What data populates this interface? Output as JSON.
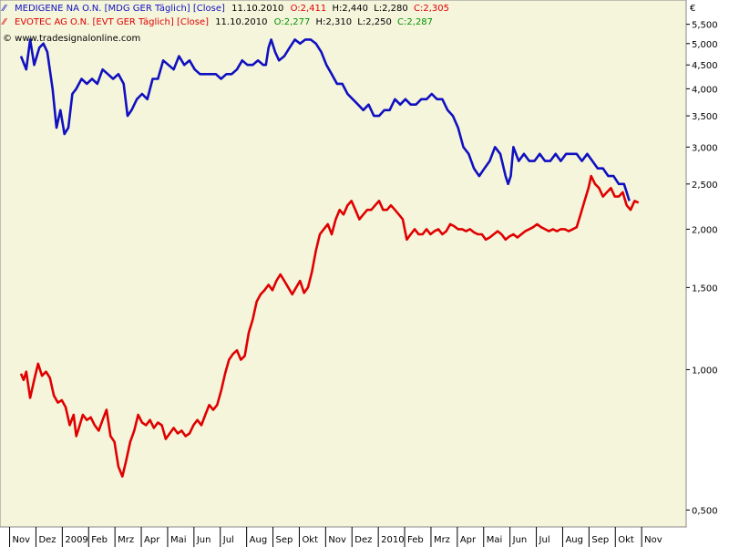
{
  "currency_symbol": "€",
  "copyright": "© www.tradesignalonline.com",
  "legend": [
    {
      "icon": "line-chart-icon",
      "name": "MEDIGENE NA O.N. [MDG GER  Täglich] [Close]",
      "date": "11.10.2010",
      "o_label": "O:",
      "o_value": "2,411",
      "h_label": "H:",
      "h_value": "2,440",
      "l_label": "L:",
      "l_value": "2,280",
      "c_label": "C:",
      "c_value": "2,305",
      "name_color": "#1010c0",
      "o_color": "#e00000",
      "h_color": "#000000",
      "l_color": "#000000",
      "c_color": "#e00000"
    },
    {
      "icon": "line-chart-icon",
      "name": "EVOTEC AG O.N. [EVT GER  Täglich] [Close]",
      "date": "11.10.2010",
      "o_label": "O:",
      "o_value": "2,277",
      "h_label": "H:",
      "h_value": "2,310",
      "l_label": "L:",
      "l_value": "2,250",
      "c_label": "C:",
      "c_value": "2,287",
      "name_color": "#e00000",
      "o_color": "#009000",
      "h_color": "#000000",
      "l_color": "#000000",
      "c_color": "#009000"
    }
  ],
  "chart_data": {
    "type": "line",
    "scale": "log",
    "ylim": [
      0.46,
      6.2
    ],
    "y_ticks": [
      {
        "value": 5.5,
        "label": "5,500"
      },
      {
        "value": 5.0,
        "label": "5,000"
      },
      {
        "value": 4.5,
        "label": "4,500"
      },
      {
        "value": 4.0,
        "label": "4,000"
      },
      {
        "value": 3.5,
        "label": "3,500"
      },
      {
        "value": 3.0,
        "label": "3,000"
      },
      {
        "value": 2.5,
        "label": "2,500"
      },
      {
        "value": 2.0,
        "label": "2,000"
      },
      {
        "value": 1.5,
        "label": "1,500"
      },
      {
        "value": 1.0,
        "label": "1,000"
      },
      {
        "value": 0.5,
        "label": "0,500"
      }
    ],
    "x_ticks": [
      "Nov",
      "Dez",
      "2009",
      "Feb",
      "Mrz",
      "Apr",
      "Mai",
      "Jun",
      "Jul",
      "Aug",
      "Sep",
      "Okt",
      "Nov",
      "Dez",
      "2010",
      "Feb",
      "Mrz",
      "Apr",
      "Mai",
      "Jun",
      "Jul",
      "Aug",
      "Sep",
      "Okt",
      "Nov"
    ],
    "x_domain_months": [
      0,
      25
    ],
    "grid": false,
    "background": "#f5f5dc",
    "series": [
      {
        "name": "MEDIGENE NA O.N.",
        "color": "#1010c0",
        "points": [
          [
            0.0,
            4.7
          ],
          [
            0.2,
            4.4
          ],
          [
            0.35,
            5.1
          ],
          [
            0.5,
            4.5
          ],
          [
            0.7,
            4.9
          ],
          [
            0.85,
            5.0
          ],
          [
            1.0,
            4.8
          ],
          [
            1.2,
            4.0
          ],
          [
            1.35,
            3.3
          ],
          [
            1.5,
            3.6
          ],
          [
            1.65,
            3.2
          ],
          [
            1.8,
            3.3
          ],
          [
            1.95,
            3.9
          ],
          [
            2.1,
            4.0
          ],
          [
            2.3,
            4.2
          ],
          [
            2.5,
            4.1
          ],
          [
            2.7,
            4.2
          ],
          [
            2.9,
            4.1
          ],
          [
            3.1,
            4.4
          ],
          [
            3.3,
            4.3
          ],
          [
            3.5,
            4.2
          ],
          [
            3.7,
            4.3
          ],
          [
            3.9,
            4.1
          ],
          [
            4.05,
            3.5
          ],
          [
            4.2,
            3.6
          ],
          [
            4.4,
            3.8
          ],
          [
            4.6,
            3.9
          ],
          [
            4.8,
            3.8
          ],
          [
            5.0,
            4.2
          ],
          [
            5.2,
            4.2
          ],
          [
            5.4,
            4.6
          ],
          [
            5.6,
            4.5
          ],
          [
            5.8,
            4.4
          ],
          [
            6.0,
            4.7
          ],
          [
            6.2,
            4.5
          ],
          [
            6.4,
            4.6
          ],
          [
            6.6,
            4.4
          ],
          [
            6.8,
            4.3
          ],
          [
            7.0,
            4.3
          ],
          [
            7.2,
            4.3
          ],
          [
            7.4,
            4.3
          ],
          [
            7.6,
            4.2
          ],
          [
            7.8,
            4.3
          ],
          [
            8.0,
            4.3
          ],
          [
            8.2,
            4.4
          ],
          [
            8.4,
            4.6
          ],
          [
            8.6,
            4.5
          ],
          [
            8.8,
            4.5
          ],
          [
            9.0,
            4.6
          ],
          [
            9.2,
            4.5
          ],
          [
            9.3,
            4.5
          ],
          [
            9.4,
            4.9
          ],
          [
            9.5,
            5.1
          ],
          [
            9.65,
            4.8
          ],
          [
            9.8,
            4.6
          ],
          [
            10.0,
            4.7
          ],
          [
            10.2,
            4.9
          ],
          [
            10.4,
            5.1
          ],
          [
            10.6,
            5.0
          ],
          [
            10.8,
            5.1
          ],
          [
            11.0,
            5.1
          ],
          [
            11.2,
            5.0
          ],
          [
            11.4,
            4.8
          ],
          [
            11.6,
            4.5
          ],
          [
            11.8,
            4.3
          ],
          [
            12.0,
            4.1
          ],
          [
            12.2,
            4.1
          ],
          [
            12.4,
            3.9
          ],
          [
            12.6,
            3.8
          ],
          [
            12.8,
            3.7
          ],
          [
            13.0,
            3.6
          ],
          [
            13.2,
            3.7
          ],
          [
            13.4,
            3.5
          ],
          [
            13.6,
            3.5
          ],
          [
            13.8,
            3.6
          ],
          [
            14.0,
            3.6
          ],
          [
            14.2,
            3.8
          ],
          [
            14.4,
            3.7
          ],
          [
            14.6,
            3.8
          ],
          [
            14.8,
            3.7
          ],
          [
            15.0,
            3.7
          ],
          [
            15.2,
            3.8
          ],
          [
            15.4,
            3.8
          ],
          [
            15.6,
            3.9
          ],
          [
            15.8,
            3.8
          ],
          [
            16.0,
            3.8
          ],
          [
            16.2,
            3.6
          ],
          [
            16.4,
            3.5
          ],
          [
            16.6,
            3.3
          ],
          [
            16.8,
            3.0
          ],
          [
            17.0,
            2.9
          ],
          [
            17.2,
            2.7
          ],
          [
            17.4,
            2.6
          ],
          [
            17.6,
            2.7
          ],
          [
            17.8,
            2.8
          ],
          [
            18.0,
            3.0
          ],
          [
            18.2,
            2.9
          ],
          [
            18.4,
            2.6
          ],
          [
            18.5,
            2.5
          ],
          [
            18.6,
            2.6
          ],
          [
            18.7,
            3.0
          ],
          [
            18.9,
            2.8
          ],
          [
            19.1,
            2.9
          ],
          [
            19.3,
            2.8
          ],
          [
            19.5,
            2.8
          ],
          [
            19.7,
            2.9
          ],
          [
            19.9,
            2.8
          ],
          [
            20.1,
            2.8
          ],
          [
            20.3,
            2.9
          ],
          [
            20.5,
            2.8
          ],
          [
            20.7,
            2.9
          ],
          [
            20.9,
            2.9
          ],
          [
            21.1,
            2.9
          ],
          [
            21.3,
            2.8
          ],
          [
            21.5,
            2.9
          ],
          [
            21.7,
            2.8
          ],
          [
            21.9,
            2.7
          ],
          [
            22.1,
            2.7
          ],
          [
            22.3,
            2.6
          ],
          [
            22.5,
            2.6
          ],
          [
            22.7,
            2.5
          ],
          [
            22.9,
            2.5
          ],
          [
            23.0,
            2.4
          ],
          [
            23.1,
            2.3
          ]
        ]
      },
      {
        "name": "EVOTEC AG O.N.",
        "color": "#e00000",
        "points": [
          [
            0.0,
            0.98
          ],
          [
            0.1,
            0.95
          ],
          [
            0.2,
            0.99
          ],
          [
            0.35,
            0.87
          ],
          [
            0.5,
            0.95
          ],
          [
            0.65,
            1.03
          ],
          [
            0.8,
            0.97
          ],
          [
            0.95,
            0.99
          ],
          [
            1.1,
            0.96
          ],
          [
            1.25,
            0.88
          ],
          [
            1.4,
            0.85
          ],
          [
            1.55,
            0.86
          ],
          [
            1.7,
            0.83
          ],
          [
            1.85,
            0.76
          ],
          [
            2.0,
            0.8
          ],
          [
            2.1,
            0.72
          ],
          [
            2.2,
            0.75
          ],
          [
            2.35,
            0.8
          ],
          [
            2.5,
            0.78
          ],
          [
            2.65,
            0.79
          ],
          [
            2.8,
            0.76
          ],
          [
            2.95,
            0.74
          ],
          [
            3.1,
            0.78
          ],
          [
            3.25,
            0.82
          ],
          [
            3.4,
            0.72
          ],
          [
            3.55,
            0.7
          ],
          [
            3.7,
            0.62
          ],
          [
            3.85,
            0.59
          ],
          [
            4.0,
            0.64
          ],
          [
            4.15,
            0.7
          ],
          [
            4.3,
            0.74
          ],
          [
            4.45,
            0.8
          ],
          [
            4.6,
            0.77
          ],
          [
            4.75,
            0.76
          ],
          [
            4.9,
            0.78
          ],
          [
            5.05,
            0.75
          ],
          [
            5.2,
            0.77
          ],
          [
            5.35,
            0.76
          ],
          [
            5.5,
            0.71
          ],
          [
            5.65,
            0.73
          ],
          [
            5.8,
            0.75
          ],
          [
            5.95,
            0.73
          ],
          [
            6.1,
            0.74
          ],
          [
            6.25,
            0.72
          ],
          [
            6.4,
            0.73
          ],
          [
            6.55,
            0.76
          ],
          [
            6.7,
            0.78
          ],
          [
            6.85,
            0.76
          ],
          [
            7.0,
            0.8
          ],
          [
            7.15,
            0.84
          ],
          [
            7.3,
            0.82
          ],
          [
            7.45,
            0.84
          ],
          [
            7.6,
            0.9
          ],
          [
            7.75,
            0.98
          ],
          [
            7.9,
            1.05
          ],
          [
            8.05,
            1.08
          ],
          [
            8.2,
            1.1
          ],
          [
            8.35,
            1.05
          ],
          [
            8.5,
            1.07
          ],
          [
            8.65,
            1.2
          ],
          [
            8.8,
            1.28
          ],
          [
            8.95,
            1.4
          ],
          [
            9.1,
            1.45
          ],
          [
            9.25,
            1.48
          ],
          [
            9.4,
            1.52
          ],
          [
            9.55,
            1.48
          ],
          [
            9.7,
            1.55
          ],
          [
            9.85,
            1.6
          ],
          [
            10.0,
            1.55
          ],
          [
            10.15,
            1.5
          ],
          [
            10.3,
            1.45
          ],
          [
            10.45,
            1.5
          ],
          [
            10.6,
            1.55
          ],
          [
            10.75,
            1.46
          ],
          [
            10.9,
            1.5
          ],
          [
            11.05,
            1.62
          ],
          [
            11.2,
            1.8
          ],
          [
            11.35,
            1.95
          ],
          [
            11.5,
            2.0
          ],
          [
            11.65,
            2.05
          ],
          [
            11.8,
            1.95
          ],
          [
            11.95,
            2.1
          ],
          [
            12.1,
            2.2
          ],
          [
            12.25,
            2.15
          ],
          [
            12.4,
            2.25
          ],
          [
            12.55,
            2.3
          ],
          [
            12.7,
            2.2
          ],
          [
            12.85,
            2.1
          ],
          [
            13.0,
            2.15
          ],
          [
            13.15,
            2.2
          ],
          [
            13.3,
            2.2
          ],
          [
            13.45,
            2.25
          ],
          [
            13.6,
            2.3
          ],
          [
            13.75,
            2.2
          ],
          [
            13.9,
            2.2
          ],
          [
            14.05,
            2.25
          ],
          [
            14.2,
            2.2
          ],
          [
            14.35,
            2.15
          ],
          [
            14.5,
            2.1
          ],
          [
            14.65,
            1.9
          ],
          [
            14.8,
            1.95
          ],
          [
            14.95,
            2.0
          ],
          [
            15.1,
            1.95
          ],
          [
            15.25,
            1.95
          ],
          [
            15.4,
            2.0
          ],
          [
            15.55,
            1.95
          ],
          [
            15.7,
            1.98
          ],
          [
            15.85,
            2.0
          ],
          [
            16.0,
            1.95
          ],
          [
            16.15,
            1.98
          ],
          [
            16.3,
            2.05
          ],
          [
            16.45,
            2.03
          ],
          [
            16.6,
            2.0
          ],
          [
            16.75,
            2.0
          ],
          [
            16.9,
            1.98
          ],
          [
            17.05,
            2.0
          ],
          [
            17.2,
            1.97
          ],
          [
            17.35,
            1.95
          ],
          [
            17.5,
            1.95
          ],
          [
            17.65,
            1.9
          ],
          [
            17.8,
            1.92
          ],
          [
            17.95,
            1.95
          ],
          [
            18.1,
            1.98
          ],
          [
            18.25,
            1.95
          ],
          [
            18.4,
            1.9
          ],
          [
            18.55,
            1.93
          ],
          [
            18.7,
            1.95
          ],
          [
            18.85,
            1.92
          ],
          [
            19.0,
            1.95
          ],
          [
            19.15,
            1.98
          ],
          [
            19.3,
            2.0
          ],
          [
            19.45,
            2.02
          ],
          [
            19.6,
            2.05
          ],
          [
            19.75,
            2.02
          ],
          [
            19.9,
            2.0
          ],
          [
            20.05,
            1.98
          ],
          [
            20.2,
            2.0
          ],
          [
            20.35,
            1.98
          ],
          [
            20.5,
            2.0
          ],
          [
            20.65,
            2.0
          ],
          [
            20.8,
            1.98
          ],
          [
            20.95,
            2.0
          ],
          [
            21.1,
            2.02
          ],
          [
            21.25,
            2.15
          ],
          [
            21.4,
            2.3
          ],
          [
            21.55,
            2.45
          ],
          [
            21.65,
            2.6
          ],
          [
            21.8,
            2.5
          ],
          [
            21.95,
            2.45
          ],
          [
            22.1,
            2.35
          ],
          [
            22.25,
            2.4
          ],
          [
            22.4,
            2.45
          ],
          [
            22.55,
            2.35
          ],
          [
            22.7,
            2.35
          ],
          [
            22.85,
            2.4
          ],
          [
            23.0,
            2.25
          ],
          [
            23.15,
            2.2
          ],
          [
            23.3,
            2.3
          ],
          [
            23.45,
            2.28
          ]
        ]
      }
    ]
  }
}
